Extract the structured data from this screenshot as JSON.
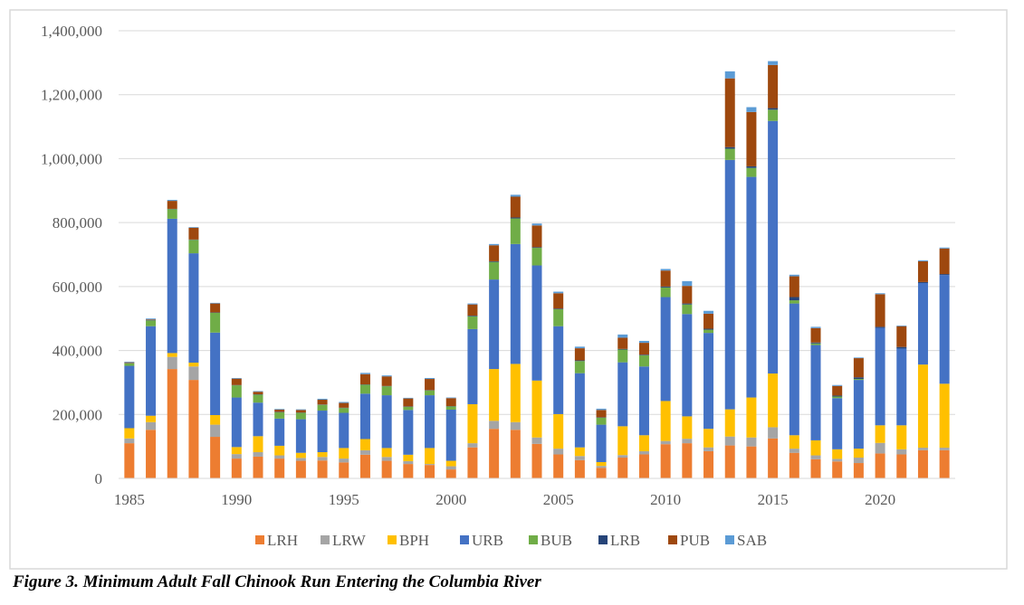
{
  "caption": "Figure 3. Minimum Adult Fall Chinook Run Entering the Columbia River",
  "chart_data": {
    "type": "bar",
    "stacked": true,
    "title": "",
    "xlabel": "",
    "ylabel": "",
    "ylim": [
      0,
      1400000
    ],
    "yticks": [
      0,
      200000,
      400000,
      600000,
      800000,
      1000000,
      1200000,
      1400000
    ],
    "ytick_labels": [
      "0",
      "200,000",
      "400,000",
      "600,000",
      "800,000",
      "1,000,000",
      "1,200,000",
      "1,400,000"
    ],
    "xtick_labels": [
      "1985",
      "1990",
      "1995",
      "2000",
      "2005",
      "2010",
      "2015",
      "2020"
    ],
    "grid": true,
    "legend_position": "bottom",
    "categories": [
      "1985",
      "1986",
      "1987",
      "1988",
      "1989",
      "1990",
      "1991",
      "1992",
      "1993",
      "1994",
      "1995",
      "1996",
      "1997",
      "1998",
      "1999",
      "2000",
      "2001",
      "2002",
      "2003",
      "2004",
      "2005",
      "2006",
      "2007",
      "2008",
      "2009",
      "2010",
      "2011",
      "2012",
      "2013",
      "2014",
      "2015",
      "2016",
      "2017",
      "2018",
      "2019",
      "2020",
      "2021",
      "2022",
      "2023"
    ],
    "series": [
      {
        "name": "LRH",
        "color": "#ED7D31",
        "values": [
          110000,
          152000,
          342000,
          308000,
          130000,
          62000,
          68000,
          62000,
          55000,
          56000,
          50000,
          74000,
          55000,
          45000,
          42000,
          28000,
          97000,
          155000,
          152000,
          108000,
          75000,
          57000,
          33000,
          65000,
          75000,
          107000,
          110000,
          85000,
          103000,
          100000,
          125000,
          80000,
          60000,
          53000,
          48000,
          78000,
          75000,
          88000,
          88000
        ]
      },
      {
        "name": "LRW",
        "color": "#A5A5A5",
        "values": [
          15000,
          24000,
          38000,
          42000,
          38000,
          14000,
          14000,
          10000,
          9000,
          11000,
          12000,
          14000,
          12000,
          9000,
          3000,
          10000,
          13000,
          25000,
          24000,
          20000,
          18000,
          13000,
          6000,
          8000,
          10000,
          10000,
          14000,
          12000,
          28000,
          28000,
          35000,
          13000,
          12000,
          8000,
          17000,
          33000,
          16000,
          8000,
          8000
        ]
      },
      {
        "name": "BPH",
        "color": "#FFC000",
        "values": [
          32000,
          20000,
          12000,
          12000,
          30000,
          22000,
          50000,
          30000,
          16000,
          15000,
          33000,
          35000,
          28000,
          20000,
          50000,
          17000,
          122000,
          162000,
          182000,
          178000,
          108000,
          27000,
          12000,
          90000,
          50000,
          125000,
          70000,
          58000,
          85000,
          125000,
          168000,
          42000,
          47000,
          30000,
          28000,
          55000,
          75000,
          260000,
          200000
        ]
      },
      {
        "name": "URB",
        "color": "#4472C4",
        "values": [
          195000,
          280000,
          420000,
          342000,
          258000,
          155000,
          105000,
          85000,
          105000,
          130000,
          110000,
          142000,
          165000,
          140000,
          165000,
          160000,
          235000,
          280000,
          375000,
          360000,
          275000,
          232000,
          117000,
          200000,
          215000,
          325000,
          320000,
          300000,
          780000,
          690000,
          790000,
          412000,
          298000,
          160000,
          215000,
          305000,
          240000,
          255000,
          340000
        ]
      },
      {
        "name": "BUB",
        "color": "#70AD47",
        "values": [
          8000,
          18000,
          30000,
          42000,
          62000,
          38000,
          25000,
          20000,
          20000,
          18000,
          15000,
          28000,
          28000,
          10000,
          15000,
          10000,
          40000,
          55000,
          80000,
          55000,
          53000,
          38000,
          22000,
          40000,
          35000,
          30000,
          30000,
          10000,
          35000,
          28000,
          35000,
          10000,
          5000,
          5000,
          3000,
          0,
          0,
          0,
          0
        ]
      },
      {
        "name": "LRB",
        "color": "#264478",
        "values": [
          1000,
          1000,
          1000,
          1000,
          1000,
          1000,
          1000,
          1000,
          1000,
          1000,
          1000,
          1000,
          1000,
          1000,
          1000,
          1000,
          2000,
          2000,
          3000,
          2000,
          2000,
          2000,
          1000,
          2000,
          2000,
          3000,
          3000,
          3000,
          5000,
          5000,
          5000,
          10000,
          3000,
          3000,
          5000,
          3000,
          5000,
          3000,
          3000
        ]
      },
      {
        "name": "PUB",
        "color": "#9E480E",
        "values": [
          2000,
          2000,
          25000,
          37000,
          28000,
          20000,
          8000,
          7000,
          8000,
          15000,
          15000,
          32000,
          30000,
          25000,
          35000,
          25000,
          35000,
          50000,
          65000,
          68000,
          48000,
          38000,
          23000,
          35000,
          37000,
          50000,
          55000,
          47000,
          215000,
          170000,
          135000,
          65000,
          45000,
          30000,
          60000,
          102000,
          65000,
          65000,
          80000
        ]
      },
      {
        "name": "SAB",
        "color": "#5B9BD5",
        "values": [
          2000,
          3000,
          3000,
          2000,
          2000,
          2000,
          2000,
          2000,
          2000,
          3000,
          3000,
          4000,
          3000,
          2000,
          3000,
          2000,
          3000,
          4000,
          6000,
          6000,
          5000,
          5000,
          4000,
          10000,
          6000,
          5000,
          15000,
          9000,
          22000,
          15000,
          12000,
          5000,
          4000,
          3000,
          2000,
          3000,
          2000,
          3000,
          3000
        ]
      }
    ]
  }
}
